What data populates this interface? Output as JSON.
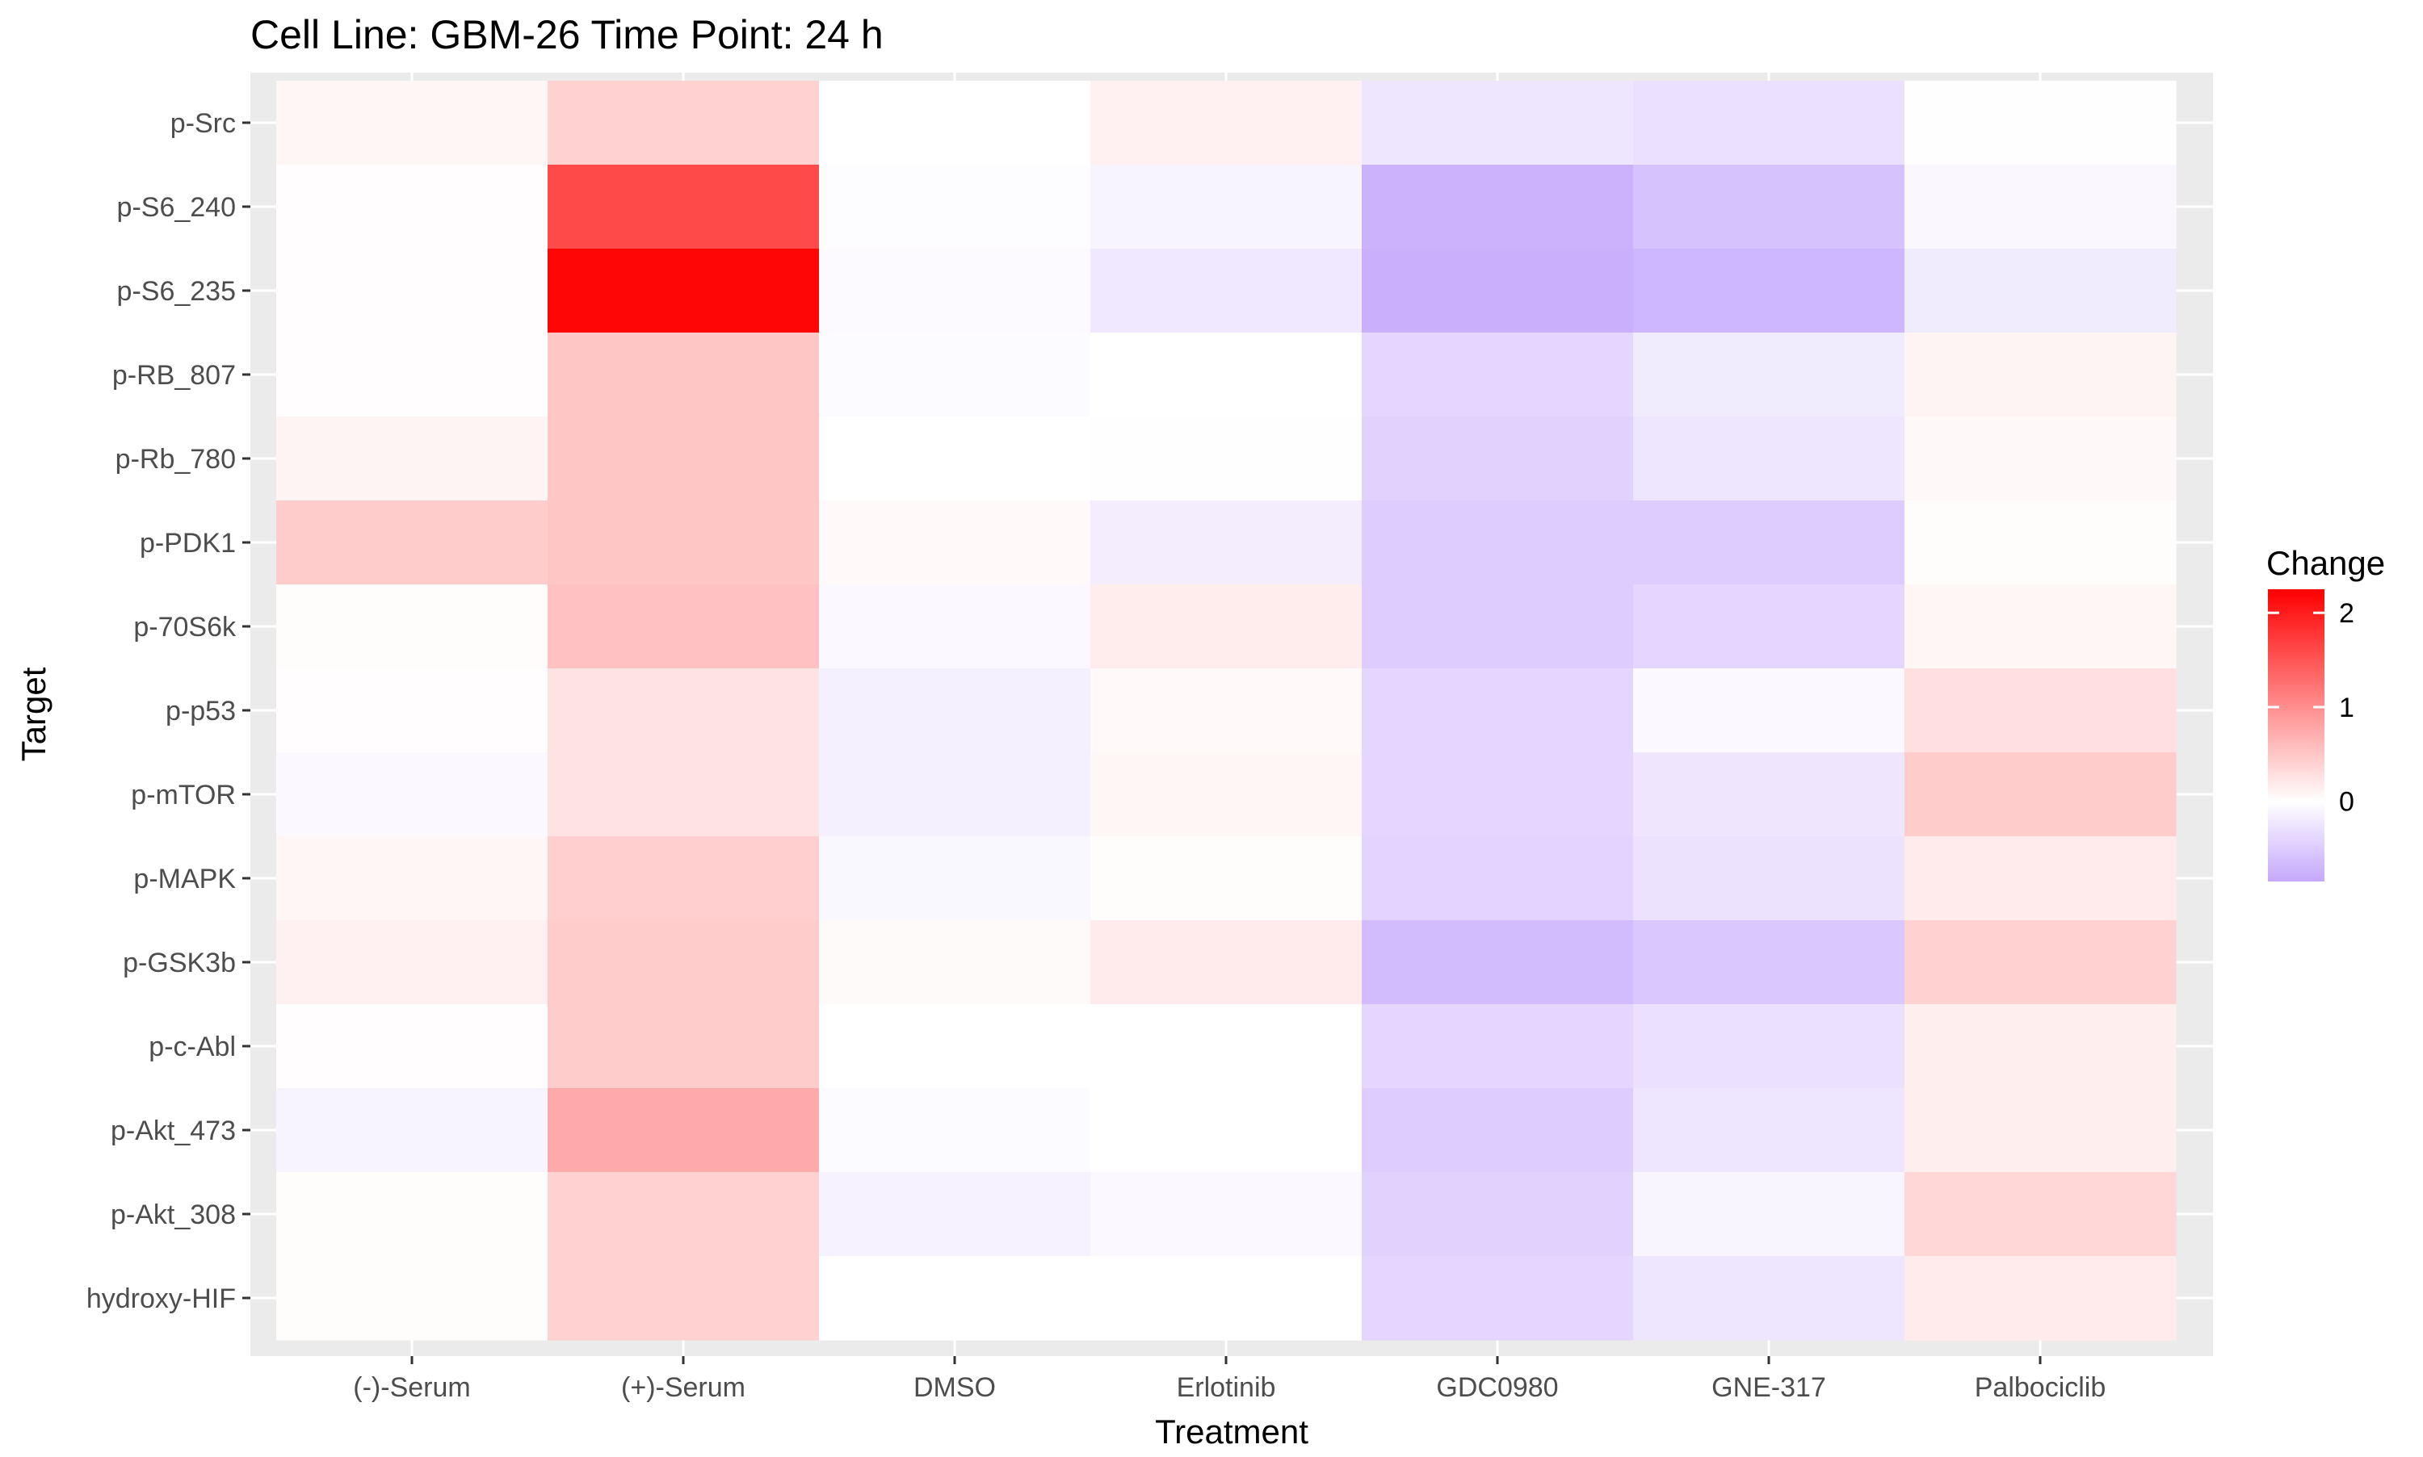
{
  "chart_data": {
    "type": "heatmap",
    "title": "Cell Line: GBM-26 Time Point: 24 h",
    "xlabel": "Treatment",
    "ylabel": "Target",
    "x_categories": [
      "(-)-Serum",
      "(+)-Serum",
      "DMSO",
      "Erlotinib",
      "GDC0980",
      "GNE-317",
      "Palbociclib"
    ],
    "y_categories": [
      "p-Src",
      "p-S6_240",
      "p-S6_235",
      "p-RB_807",
      "p-Rb_780",
      "p-PDK1",
      "p-70S6k",
      "p-p53",
      "p-mTOR",
      "p-MAPK",
      "p-GSK3b",
      "p-c-Abl",
      "p-Akt_473",
      "p-Akt_308",
      "hydroxy-HIF"
    ],
    "values": [
      [
        0.08,
        0.4,
        0.0,
        0.12,
        -0.25,
        -0.3,
        0.01
      ],
      [
        0.02,
        1.6,
        -0.03,
        -0.12,
        -0.75,
        -0.6,
        -0.08
      ],
      [
        0.02,
        2.2,
        -0.05,
        -0.22,
        -0.78,
        -0.7,
        -0.2
      ],
      [
        0.02,
        0.5,
        -0.04,
        0.0,
        -0.4,
        -0.2,
        0.1
      ],
      [
        0.1,
        0.5,
        0.0,
        -0.02,
        -0.45,
        -0.25,
        0.06
      ],
      [
        0.45,
        0.5,
        0.05,
        -0.18,
        -0.5,
        -0.5,
        0.03
      ],
      [
        0.03,
        0.55,
        -0.06,
        0.16,
        -0.5,
        -0.4,
        0.08
      ],
      [
        0.02,
        0.25,
        -0.15,
        0.05,
        -0.4,
        -0.06,
        0.28
      ],
      [
        -0.06,
        0.25,
        -0.15,
        0.08,
        -0.4,
        -0.24,
        0.45
      ],
      [
        0.08,
        0.42,
        -0.07,
        0.03,
        -0.42,
        -0.28,
        0.18
      ],
      [
        0.12,
        0.45,
        0.04,
        0.18,
        -0.65,
        -0.55,
        0.4
      ],
      [
        0.02,
        0.45,
        0.0,
        0.0,
        -0.4,
        -0.3,
        0.15
      ],
      [
        -0.12,
        0.75,
        -0.04,
        0.0,
        -0.5,
        -0.25,
        0.15
      ],
      [
        0.03,
        0.4,
        -0.13,
        -0.06,
        -0.45,
        -0.1,
        0.35
      ],
      [
        0.03,
        0.4,
        0.0,
        0.0,
        -0.4,
        -0.25,
        0.18
      ]
    ],
    "legend": {
      "title": "Change",
      "position": "right",
      "ticks": [
        2,
        1,
        0
      ],
      "min": -0.85,
      "max": 2.25,
      "low_color": "#c5a8fc",
      "mid_color": "#ffffff",
      "high_color": "#ff0000"
    },
    "panel_background": "#ebebeb",
    "grid": true
  }
}
